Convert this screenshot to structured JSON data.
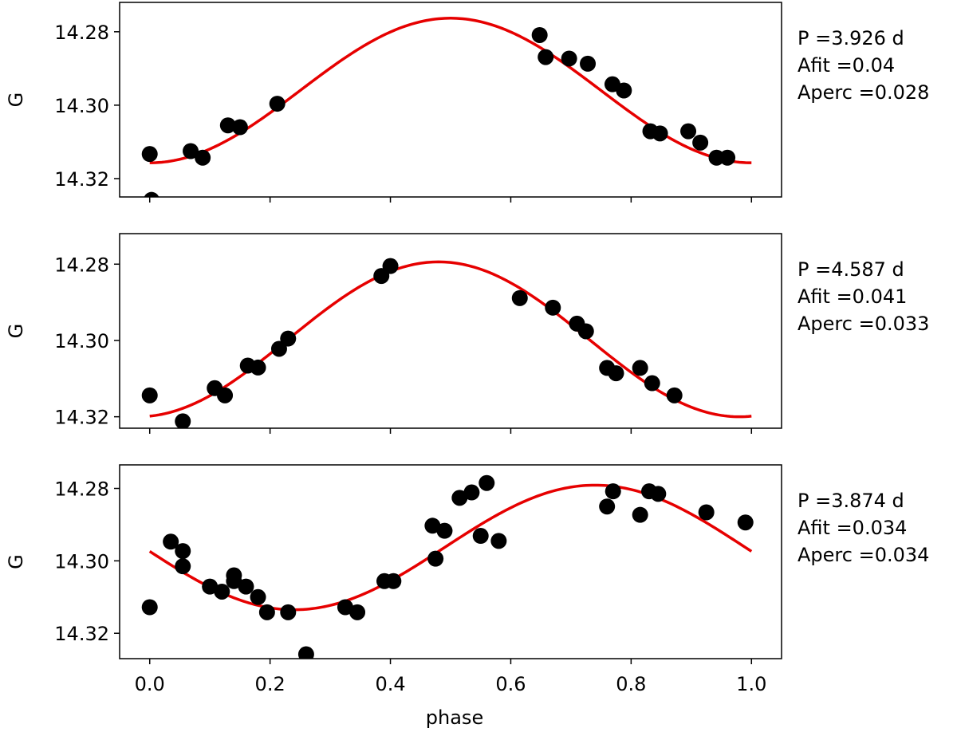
{
  "chart_data": [
    {
      "type": "scatter",
      "ylabel": "G",
      "ylim": [
        14.325,
        14.272
      ],
      "yticks": [
        14.28,
        14.3,
        14.32
      ],
      "ytick_labels": [
        "14.28",
        "14.30",
        "14.32"
      ],
      "xlim": [
        -0.05,
        1.05
      ],
      "xticks": [
        0.0,
        0.2,
        0.4,
        0.6,
        0.8,
        1.0
      ],
      "show_xtick_labels": false,
      "annotation": [
        "P =3.926 d",
        "Afit =0.04",
        "Aperc =0.028"
      ],
      "fit": {
        "mean": 14.296,
        "amplitude": 0.0197,
        "peak_phase": 0.5,
        "color": "#e60000"
      },
      "points": {
        "x": [
          0.0,
          0.003,
          0.068,
          0.088,
          0.13,
          0.15,
          0.212,
          0.648,
          0.658,
          0.697,
          0.728,
          0.769,
          0.788,
          0.832,
          0.848,
          0.895,
          0.915,
          0.942,
          0.96
        ],
        "y": [
          14.3133,
          14.3258,
          14.3125,
          14.3143,
          14.3055,
          14.306,
          14.2996,
          14.2809,
          14.2869,
          14.2873,
          14.2887,
          14.2943,
          14.296,
          14.3071,
          14.3077,
          14.3071,
          14.3102,
          14.3143,
          14.3143
        ],
        "color": "#000000"
      }
    },
    {
      "type": "scatter",
      "ylabel": "G",
      "ylim": [
        14.323,
        14.272
      ],
      "yticks": [
        14.28,
        14.3,
        14.32
      ],
      "ytick_labels": [
        "14.28",
        "14.30",
        "14.32"
      ],
      "xlim": [
        -0.05,
        1.05
      ],
      "xticks": [
        0.0,
        0.2,
        0.4,
        0.6,
        0.8,
        1.0
      ],
      "show_xtick_labels": false,
      "annotation": [
        "P =4.587 d",
        "Afit =0.041",
        "Aperc =0.033"
      ],
      "fit": {
        "mean": 14.2997,
        "amplitude": 0.0203,
        "peak_phase": 0.48,
        "color": "#e60000"
      },
      "points": {
        "x": [
          0.0,
          0.055,
          0.108,
          0.125,
          0.163,
          0.18,
          0.215,
          0.23,
          0.385,
          0.4,
          0.615,
          0.67,
          0.71,
          0.725,
          0.76,
          0.775,
          0.815,
          0.835,
          0.872
        ],
        "y": [
          14.3144,
          14.3212,
          14.3125,
          14.3144,
          14.3066,
          14.3071,
          14.3022,
          14.2995,
          14.2831,
          14.2805,
          14.2889,
          14.2914,
          14.2956,
          14.2976,
          14.3072,
          14.3086,
          14.3072,
          14.3112,
          14.3144
        ],
        "color": "#000000"
      }
    },
    {
      "type": "scatter",
      "ylabel": "G",
      "xlabel": "phase",
      "ylim": [
        14.327,
        14.2735
      ],
      "yticks": [
        14.28,
        14.3,
        14.32
      ],
      "ytick_labels": [
        "14.28",
        "14.30",
        "14.32"
      ],
      "xlim": [
        -0.05,
        1.05
      ],
      "xticks": [
        0.0,
        0.2,
        0.4,
        0.6,
        0.8,
        1.0
      ],
      "xtick_labels": [
        "0.0",
        "0.2",
        "0.4",
        "0.6",
        "0.8",
        "1.0"
      ],
      "show_xtick_labels": true,
      "annotation": [
        "P =3.874 d",
        "Afit =0.034",
        "Aperc =0.034"
      ],
      "fit": {
        "mean": 14.2963,
        "amplitude": 0.0172,
        "peak_phase": 0.74,
        "color": "#e60000"
      },
      "points": {
        "x": [
          0.0,
          0.035,
          0.055,
          0.055,
          0.1,
          0.12,
          0.14,
          0.14,
          0.16,
          0.18,
          0.195,
          0.23,
          0.26,
          0.325,
          0.345,
          0.39,
          0.405,
          0.47,
          0.475,
          0.49,
          0.515,
          0.535,
          0.55,
          0.56,
          0.58,
          0.76,
          0.77,
          0.815,
          0.83,
          0.845,
          0.925,
          0.99
        ],
        "y": [
          14.3128,
          14.2947,
          14.2973,
          14.3015,
          14.3071,
          14.3085,
          14.304,
          14.3056,
          14.3071,
          14.31,
          14.3142,
          14.3142,
          14.3258,
          14.3128,
          14.3142,
          14.3056,
          14.3056,
          14.2903,
          14.2994,
          14.2917,
          14.2826,
          14.2811,
          14.2931,
          14.2785,
          14.2945,
          14.285,
          14.2808,
          14.2873,
          14.2808,
          14.2815,
          14.2866,
          14.2894
        ],
        "color": "#000000"
      }
    }
  ]
}
